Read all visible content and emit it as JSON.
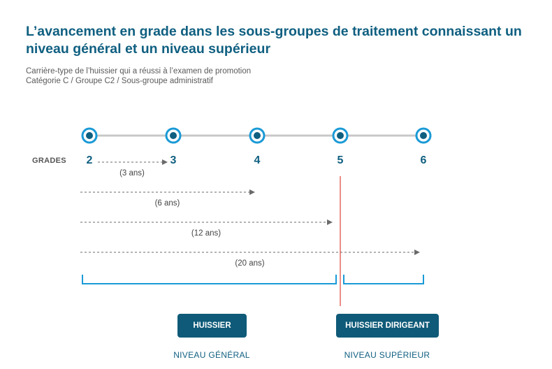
{
  "title": "L’avancement en grade dans les sous-groupes de traitement connaissant un niveau général et un niveau supérieur",
  "subtitle": {
    "line1": "Carrière-type de l’huissier qui a réussi à l’examen de promotion",
    "line2": "Catégorie C  / Groupe C2 / Sous-groupe administratif"
  },
  "grades_label": "GRADES",
  "grades": [
    "2",
    "3",
    "4",
    "5",
    "6"
  ],
  "durations": [
    {
      "from": "2",
      "to": "3",
      "label": "(3 ans)"
    },
    {
      "from": "2",
      "to": "4",
      "label": "(6 ans)"
    },
    {
      "from": "2",
      "to": "5",
      "label": "(12 ans)"
    },
    {
      "from": "2",
      "to": "6",
      "label": "(20 ans)"
    }
  ],
  "levels": {
    "general": {
      "button": "HUISSIER",
      "label": "NIVEAU GÉNÉRAL",
      "grades": [
        "2",
        "3",
        "4",
        "5"
      ]
    },
    "superieur": {
      "button": "HUISSIER DIRIGEANT",
      "label": "NIVEAU SUPÉRIEUR",
      "grades": [
        "6"
      ]
    }
  },
  "colors": {
    "primary": "#0f5f80",
    "node_fill": "#1a9ad6",
    "timeline": "#c8c8c8",
    "divider": "#e0423a",
    "bracket": "#1a9ad6",
    "arrow": "#6a6a6a"
  }
}
